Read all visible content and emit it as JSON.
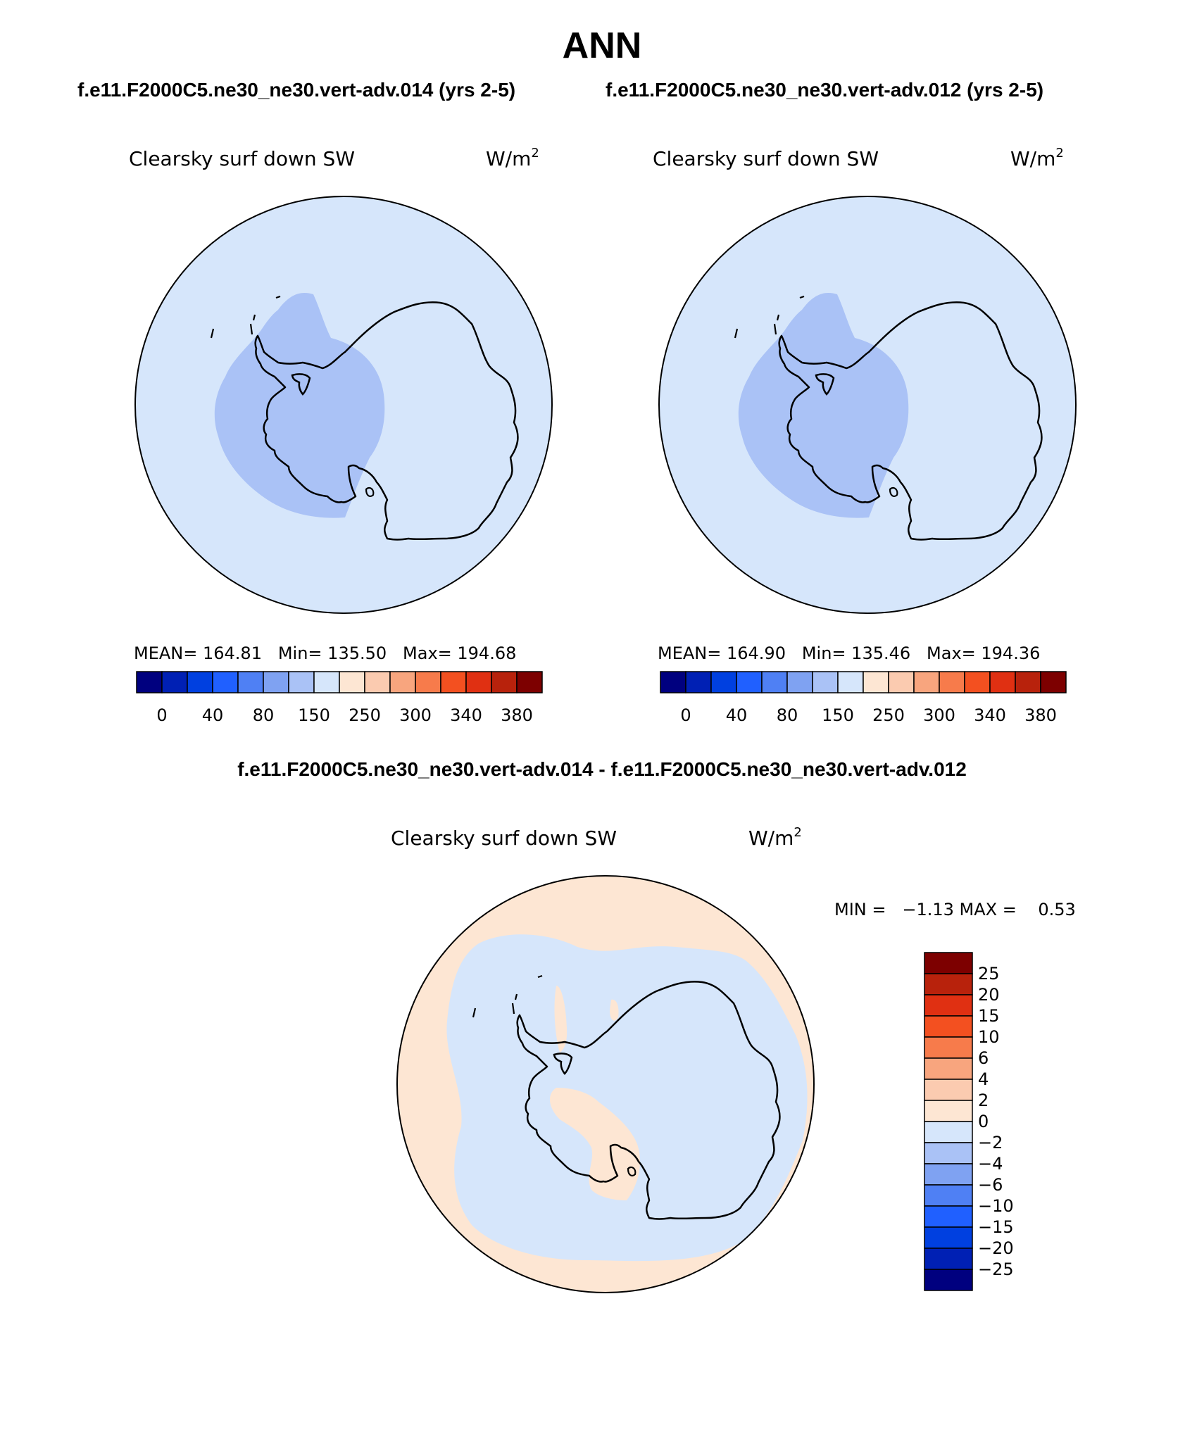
{
  "page": {
    "title": "ANN",
    "case_left": "f.e11.F2000C5.ne30_ne30.vert-adv.014 (yrs 2-5)",
    "case_right": "f.e11.F2000C5.ne30_ne30.vert-adv.012 (yrs 2-5)",
    "diff_title": "f.e11.F2000C5.ne30_ne30.vert-adv.014 - f.e11.F2000C5.ne30_ne30.vert-adv.012"
  },
  "panels": [
    {
      "variable": "Clearsky surf down SW",
      "units_base": "W/m",
      "units_exp": "2",
      "stats": "MEAN= 164.81   Min= 135.50   Max= 194.68"
    },
    {
      "variable": "Clearsky surf down SW",
      "units_base": "W/m",
      "units_exp": "2",
      "stats": "MEAN= 164.90   Min= 135.46   Max= 194.36"
    },
    {
      "variable": "Clearsky surf down SW",
      "units_base": "W/m",
      "units_exp": "2",
      "stats": "MIN =   −1.13 MAX =    0.53"
    }
  ],
  "colorbar_abs": {
    "colors": [
      "#00007f",
      "#0020b4",
      "#0040e0",
      "#2060ff",
      "#4f80f4",
      "#7fa2f2",
      "#aac2f6",
      "#d6e6fb",
      "#fde6d3",
      "#fbcbb0",
      "#f8a57e",
      "#f77b4b",
      "#f35020",
      "#e03012",
      "#b8220c",
      "#7d0000"
    ],
    "labels": [
      "0",
      "40",
      "80",
      "150",
      "250",
      "300",
      "340",
      "380"
    ]
  },
  "colorbar_diff": {
    "colors": [
      "#00007f",
      "#0020b4",
      "#0040e0",
      "#2060ff",
      "#4f80f4",
      "#7fa2f2",
      "#aac2f6",
      "#d6e6fb",
      "#fde6d3",
      "#fbcbb0",
      "#f8a57e",
      "#f77b4b",
      "#f35020",
      "#e03012",
      "#b8220c",
      "#7d0000"
    ],
    "labels": [
      "25",
      "20",
      "15",
      "10",
      "6",
      "4",
      "2",
      "0",
      "−2",
      "−4",
      "−6",
      "−10",
      "−15",
      "−20",
      "−25"
    ]
  },
  "field_colors": {
    "ocean_abs": "#d6e6fb",
    "west_antarctica_abs": "#aac2f6",
    "east_antarctica_abs": "#d6e6fb",
    "diff_negative": "#d6e6fb",
    "diff_positive": "#fde6d3"
  }
}
